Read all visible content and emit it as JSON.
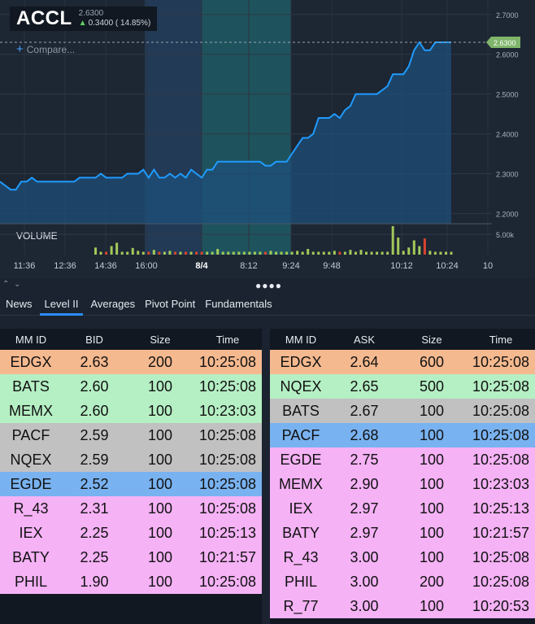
{
  "ticker": {
    "symbol": "ACCL",
    "price": "2.6300",
    "change": "0.3400 ( 14.85%)",
    "compare_label": "Compare..."
  },
  "chart_data": {
    "type": "area",
    "current_price_label": "2.6300",
    "current_price": 2.63,
    "ylim": [
      2.16,
      2.72
    ],
    "y_ticks": [
      "2.7000",
      "2.6000",
      "2.5000",
      "2.4000",
      "2.3000",
      "2.2000"
    ],
    "x_tick_labels": [
      "11:36",
      "12:36",
      "14:36",
      "16:00",
      "8/4",
      "8:12",
      "9:24",
      "9:48",
      "10:12",
      "10:24",
      "10"
    ],
    "volume_label": "VOLUME",
    "volume_tick": "5.00k",
    "price_series": [
      2.28,
      2.27,
      2.26,
      2.26,
      2.28,
      2.28,
      2.29,
      2.28,
      2.28,
      2.28,
      2.28,
      2.28,
      2.28,
      2.28,
      2.28,
      2.29,
      2.29,
      2.29,
      2.29,
      2.3,
      2.29,
      2.29,
      2.29,
      2.29,
      2.3,
      2.3,
      2.3,
      2.31,
      2.29,
      2.31,
      2.29,
      2.29,
      2.3,
      2.29,
      2.3,
      2.29,
      2.31,
      2.3,
      2.29,
      2.31,
      2.31,
      2.33,
      2.33,
      2.33,
      2.33,
      2.33,
      2.33,
      2.33,
      2.33,
      2.33,
      2.32,
      2.32,
      2.33,
      2.33,
      2.33,
      2.35,
      2.37,
      2.39,
      2.39,
      2.4,
      2.44,
      2.44,
      2.44,
      2.45,
      2.44,
      2.46,
      2.47,
      2.5,
      2.5,
      2.5,
      2.5,
      2.5,
      2.51,
      2.52,
      2.55,
      2.55,
      2.55,
      2.57,
      2.61,
      2.63,
      2.61,
      2.61,
      2.63,
      2.63,
      2.63,
      2.63
    ],
    "volume_series": [
      0,
      0,
      0,
      0,
      0,
      0,
      0,
      0,
      0,
      0,
      0,
      0,
      0,
      0,
      0,
      0,
      0,
      0,
      1.5,
      0.6,
      0.6,
      1.8,
      2.5,
      0.6,
      0.6,
      1.4,
      0.8,
      0.6,
      0.6,
      1.0,
      0.6,
      0.6,
      0.8,
      0.6,
      0.6,
      0.6,
      0.6,
      0.6,
      0.6,
      0.6,
      0.6,
      1.2,
      0.6,
      0.6,
      0.6,
      0.6,
      0.6,
      0.6,
      0.6,
      0.6,
      0.6,
      0.8,
      0.6,
      0.6,
      0.6,
      0.6,
      0.8,
      0.6,
      1.2,
      0.6,
      0.6,
      0.6,
      0.6,
      0.8,
      0.6,
      0.6,
      1.0,
      0.6,
      1.0,
      0.6,
      0.6,
      0.6,
      0.6,
      0.6,
      6.0,
      3.6,
      0.8,
      1.5,
      3.0,
      1.8,
      3.4,
      0.8,
      0.6,
      0.6,
      0.6,
      0.6
    ],
    "volume_colors": [
      "#a3c95a",
      "#d9442f"
    ]
  },
  "panel": {
    "tabs": [
      "News",
      "Level II",
      "Averages",
      "Pivot Point",
      "Fundamentals"
    ],
    "active_tab": "Level II"
  },
  "bid_book": {
    "headers": [
      "MM ID",
      "BID",
      "Size",
      "Time"
    ],
    "rows": [
      {
        "mm": "EDGX",
        "price": "2.63",
        "size": "200",
        "time": "10:25:08",
        "color": "#f5b98f"
      },
      {
        "mm": "BATS",
        "price": "2.60",
        "size": "100",
        "time": "10:25:08",
        "color": "#b5efc4"
      },
      {
        "mm": "MEMX",
        "price": "2.60",
        "size": "100",
        "time": "10:23:03",
        "color": "#b5efc4"
      },
      {
        "mm": "PACF",
        "price": "2.59",
        "size": "100",
        "time": "10:25:08",
        "color": "#c1c1c1"
      },
      {
        "mm": "NQEX",
        "price": "2.59",
        "size": "100",
        "time": "10:25:08",
        "color": "#c1c1c1"
      },
      {
        "mm": "EGDE",
        "price": "2.52",
        "size": "100",
        "time": "10:25:08",
        "color": "#79b2f0"
      },
      {
        "mm": "R_43",
        "price": "2.31",
        "size": "100",
        "time": "10:25:08",
        "color": "#f5b2f5"
      },
      {
        "mm": "IEX",
        "price": "2.25",
        "size": "100",
        "time": "10:25:13",
        "color": "#f5b2f5"
      },
      {
        "mm": "BATY",
        "price": "2.25",
        "size": "100",
        "time": "10:21:57",
        "color": "#f5b2f5"
      },
      {
        "mm": "PHIL",
        "price": "1.90",
        "size": "100",
        "time": "10:25:08",
        "color": "#f5b2f5"
      }
    ]
  },
  "ask_book": {
    "headers": [
      "MM ID",
      "ASK",
      "Size",
      "Time"
    ],
    "rows": [
      {
        "mm": "EDGX",
        "price": "2.64",
        "size": "600",
        "time": "10:25:08",
        "color": "#f5b98f"
      },
      {
        "mm": "NQEX",
        "price": "2.65",
        "size": "500",
        "time": "10:25:08",
        "color": "#b5efc4"
      },
      {
        "mm": "BATS",
        "price": "2.67",
        "size": "100",
        "time": "10:25:08",
        "color": "#c1c1c1"
      },
      {
        "mm": "PACF",
        "price": "2.68",
        "size": "100",
        "time": "10:25:08",
        "color": "#79b2f0"
      },
      {
        "mm": "EGDE",
        "price": "2.75",
        "size": "100",
        "time": "10:25:08",
        "color": "#f5b2f5"
      },
      {
        "mm": "MEMX",
        "price": "2.90",
        "size": "100",
        "time": "10:23:03",
        "color": "#f5b2f5"
      },
      {
        "mm": "IEX",
        "price": "2.97",
        "size": "100",
        "time": "10:25:13",
        "color": "#f5b2f5"
      },
      {
        "mm": "BATY",
        "price": "2.97",
        "size": "100",
        "time": "10:21:57",
        "color": "#f5b2f5"
      },
      {
        "mm": "R_43",
        "price": "3.00",
        "size": "100",
        "time": "10:25:08",
        "color": "#f5b2f5"
      },
      {
        "mm": "PHIL",
        "price": "3.00",
        "size": "200",
        "time": "10:25:08",
        "color": "#f5b2f5"
      },
      {
        "mm": "R_77",
        "price": "3.00",
        "size": "100",
        "time": "10:20:53",
        "color": "#f5b2f5"
      }
    ]
  }
}
